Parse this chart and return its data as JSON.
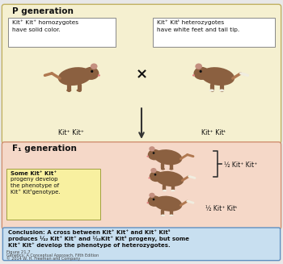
{
  "bg_color": "#e8e8e8",
  "p_gen_bg": "#f5f0d0",
  "f1_gen_bg": "#f5d8c8",
  "conclusion_bg": "#c8dff0",
  "p_gen_label": "P generation",
  "f1_gen_label": "F₁ generation",
  "label_p1": "Kit⁺ Kit⁺",
  "label_p2": "Kit⁺ Kitᵗ",
  "cross_symbol": "×",
  "label_f1_1": "½ Kit⁺ Kit⁺",
  "label_f1_2": "½ Kit⁺ Kitᵗ",
  "mouse_brown": "#8B6040",
  "mouse_ear": "#c49080",
  "mouse_nose": "#e08080",
  "mouse_white": "#f0ede0",
  "mouse_tail": "#b07850",
  "text_color": "#111111",
  "box_bg": "#ffffff",
  "yellow_box_bg": "#f8f0a0",
  "arrow_color": "#333333"
}
